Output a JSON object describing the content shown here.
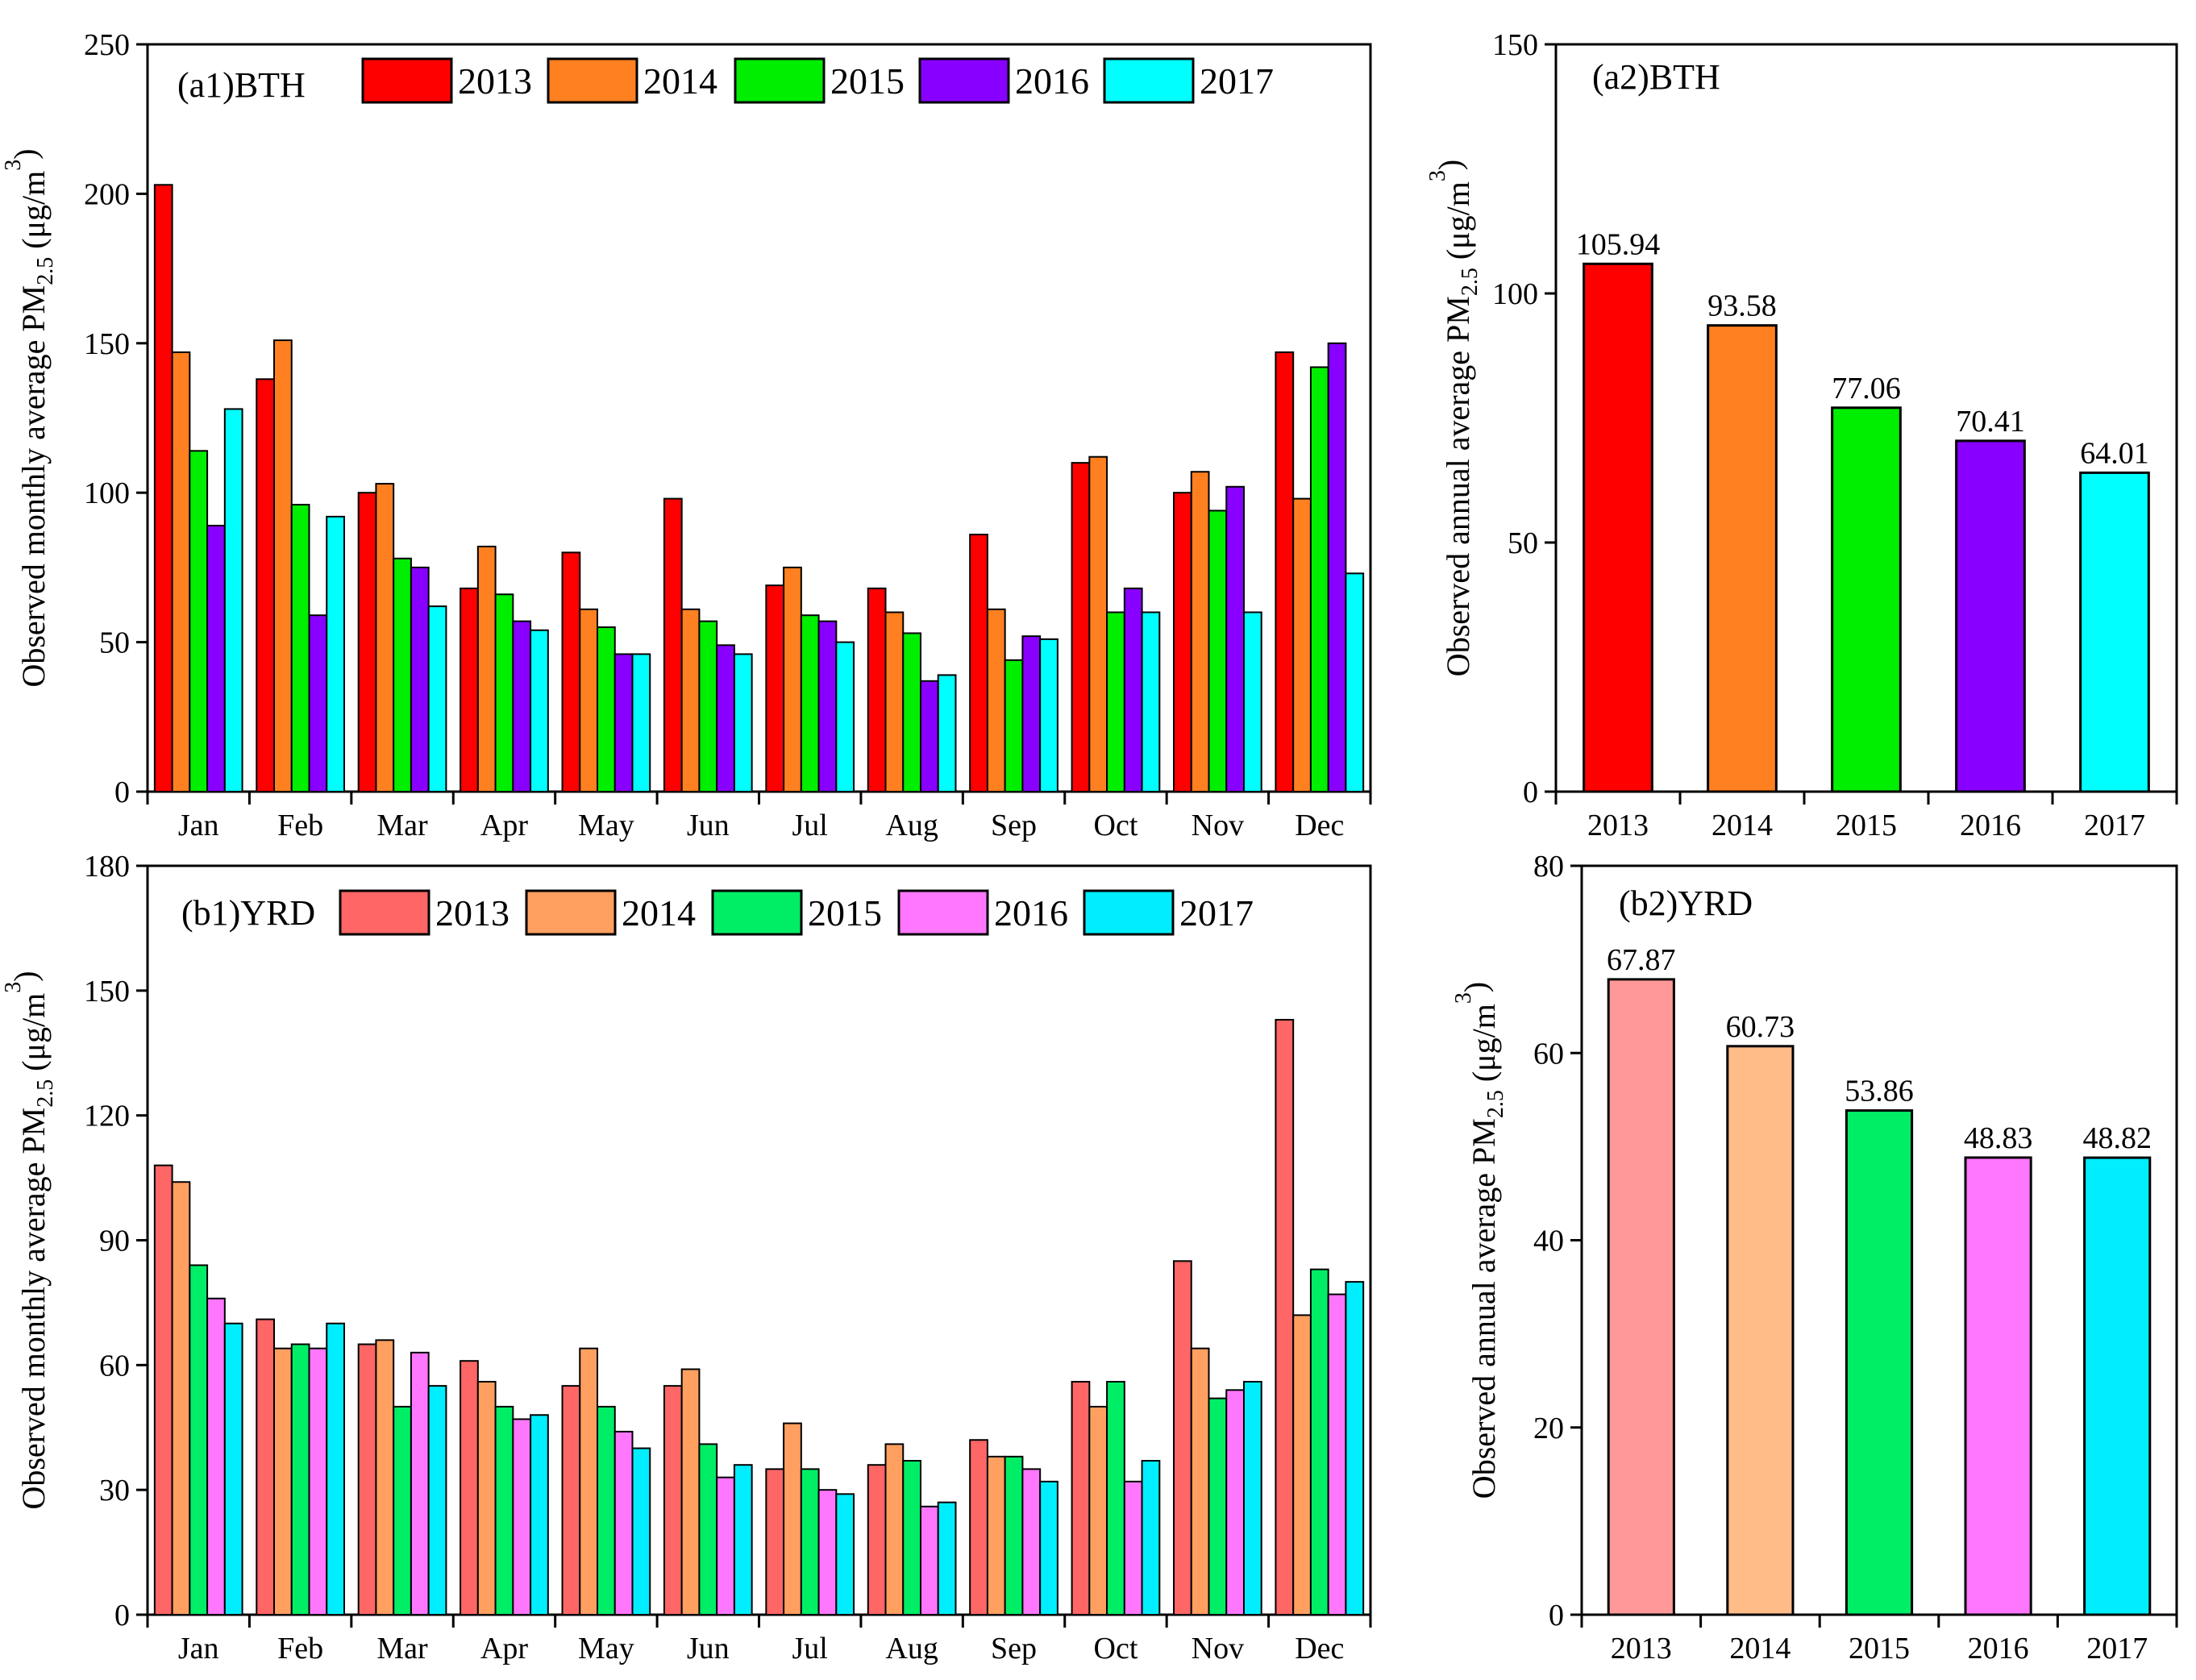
{
  "chart_data": [
    {
      "id": "a1",
      "type": "bar",
      "panel_tag": "(a1)BTH",
      "ylabel": "Observed monthly average PM2.5 (μg/m3)",
      "ylabel_main": "Observed monthly average PM",
      "ylabel_sub": "2.5",
      "ylabel_unit": " (μg/m",
      "ylabel_sup": "3",
      "ylabel_close": ")",
      "ylim": [
        0,
        250
      ],
      "yticks": [
        0,
        50,
        100,
        150,
        200,
        250
      ],
      "legend_position": "top",
      "categories": [
        "Jan",
        "Feb",
        "Mar",
        "Apr",
        "May",
        "Jun",
        "Jul",
        "Aug",
        "Sep",
        "Oct",
        "Nov",
        "Dec"
      ],
      "series": [
        {
          "name": "2013",
          "color": "#ff0000",
          "values": [
            203,
            138,
            100,
            68,
            80,
            98,
            69,
            68,
            86,
            110,
            100,
            147
          ]
        },
        {
          "name": "2014",
          "color": "#ff8020",
          "values": [
            147,
            151,
            103,
            82,
            61,
            61,
            75,
            60,
            61,
            112,
            107,
            98
          ]
        },
        {
          "name": "2015",
          "color": "#00ee00",
          "values": [
            114,
            96,
            78,
            66,
            55,
            57,
            59,
            53,
            44,
            60,
            94,
            142
          ]
        },
        {
          "name": "2016",
          "color": "#8800ff",
          "values": [
            89,
            59,
            75,
            57,
            46,
            49,
            57,
            37,
            52,
            68,
            102,
            150
          ]
        },
        {
          "name": "2017",
          "color": "#00ffff",
          "values": [
            128,
            92,
            62,
            54,
            46,
            46,
            50,
            39,
            51,
            60,
            60,
            73
          ]
        }
      ]
    },
    {
      "id": "a2",
      "type": "bar",
      "panel_tag": "(a2)BTH",
      "ylabel": "Observed annual average PM2.5 (μg/m3)",
      "ylabel_main": "Observed annual average PM",
      "ylabel_sub": "2.5",
      "ylabel_unit": " (μg/m",
      "ylabel_sup": "3",
      "ylabel_close": ")",
      "ylim": [
        0,
        150
      ],
      "yticks": [
        0,
        50,
        100,
        150
      ],
      "categories": [
        "2013",
        "2014",
        "2015",
        "2016",
        "2017"
      ],
      "values": [
        105.94,
        93.58,
        77.06,
        70.41,
        64.01
      ],
      "data_labels": [
        "105.94",
        "93.58",
        "77.06",
        "70.41",
        "64.01"
      ],
      "colors": [
        "#ff0000",
        "#ff8020",
        "#00ee00",
        "#8800ff",
        "#00ffff"
      ]
    },
    {
      "id": "b1",
      "type": "bar",
      "panel_tag": "(b1)YRD",
      "ylabel": "Observed monthly average PM2.5 (μg/m3)",
      "ylabel_main": "Observed monthly average PM",
      "ylabel_sub": "2.5",
      "ylabel_unit": " (μg/m",
      "ylabel_sup": "3",
      "ylabel_close": ")",
      "ylim": [
        0,
        180
      ],
      "yticks": [
        0,
        30,
        60,
        90,
        120,
        150,
        180
      ],
      "legend_position": "top",
      "categories": [
        "Jan",
        "Feb",
        "Mar",
        "Apr",
        "May",
        "Jun",
        "Jul",
        "Aug",
        "Sep",
        "Oct",
        "Nov",
        "Dec"
      ],
      "series": [
        {
          "name": "2013",
          "color": "#ff6666",
          "values": [
            108,
            71,
            65,
            61,
            55,
            55,
            35,
            36,
            42,
            56,
            85,
            143
          ]
        },
        {
          "name": "2014",
          "color": "#ffa060",
          "values": [
            104,
            64,
            66,
            56,
            64,
            59,
            46,
            41,
            38,
            50,
            64,
            72
          ]
        },
        {
          "name": "2015",
          "color": "#00ee66",
          "values": [
            84,
            65,
            50,
            50,
            50,
            41,
            35,
            37,
            38,
            56,
            52,
            83
          ]
        },
        {
          "name": "2016",
          "color": "#ff77ff",
          "values": [
            76,
            64,
            63,
            47,
            44,
            33,
            30,
            26,
            35,
            32,
            54,
            77
          ]
        },
        {
          "name": "2017",
          "color": "#00eeff",
          "values": [
            70,
            70,
            55,
            48,
            40,
            36,
            29,
            27,
            32,
            37,
            56,
            80
          ]
        }
      ]
    },
    {
      "id": "b2",
      "type": "bar",
      "panel_tag": "(b2)YRD",
      "ylabel": "Observed annual average PM2.5 (μg/m3)",
      "ylabel_main": "Observed annual average PM",
      "ylabel_sub": "2.5",
      "ylabel_unit": " (μg/m",
      "ylabel_sup": "3",
      "ylabel_close": ")",
      "ylim": [
        0,
        80
      ],
      "yticks": [
        0,
        20,
        40,
        60,
        80
      ],
      "categories": [
        "2013",
        "2014",
        "2015",
        "2016",
        "2017"
      ],
      "values": [
        67.87,
        60.73,
        53.86,
        48.83,
        48.82
      ],
      "data_labels": [
        "67.87",
        "60.73",
        "53.86",
        "48.83",
        "48.82"
      ],
      "colors": [
        "#ff9999",
        "#ffbb88",
        "#00ee66",
        "#ff77ff",
        "#00eeff"
      ]
    }
  ]
}
